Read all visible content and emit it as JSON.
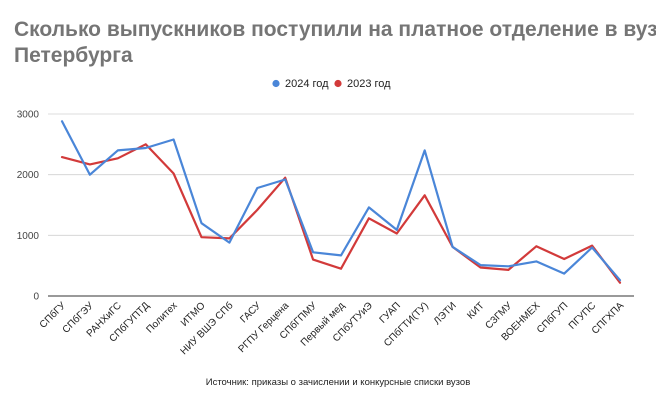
{
  "chart_data": {
    "type": "line",
    "title": "Сколько выпускников поступили на платное отделение в вузы Петербурга",
    "title_lines": [
      "Сколько выпускников поступили на платное отделение в вузы",
      "Петербурга"
    ],
    "source": "Источник: приказы о зачислении и конкурсные списки вузов",
    "xlabel": "",
    "ylabel": "",
    "ylim": [
      0,
      3000
    ],
    "yticks": [
      0,
      1000,
      2000,
      3000
    ],
    "grid": true,
    "legend_position": "top-center",
    "categories": [
      "СПбГУ",
      "СПбГЭУ",
      "РАНХиГС",
      "СПбГУПТД",
      "Политех",
      "ИТМО",
      "НИУ ВШЭ СПб",
      "ГАСУ",
      "РГПУ Герцена",
      "СПбГПМУ",
      "Первый мед",
      "СПбУТУиЭ",
      "ГУАП",
      "СПбГТИ(ТУ)",
      "ЛЭТИ",
      "КИТ",
      "СЗГМУ",
      "ВОЕНМЕХ",
      "СПбГУП",
      "ПГУПС",
      "СПГХПА"
    ],
    "series": [
      {
        "name": "2024 год",
        "color": "#4a86d8",
        "values": [
          2880,
          2000,
          2400,
          2440,
          2580,
          1200,
          880,
          1780,
          1920,
          720,
          670,
          1460,
          1090,
          2400,
          810,
          510,
          490,
          570,
          370,
          800,
          260
        ]
      },
      {
        "name": "2023 год",
        "color": "#d23a3a",
        "values": [
          2290,
          2170,
          2270,
          2500,
          2020,
          970,
          950,
          1420,
          1950,
          600,
          450,
          1280,
          1030,
          1660,
          810,
          470,
          430,
          820,
          610,
          830,
          220
        ]
      }
    ]
  }
}
